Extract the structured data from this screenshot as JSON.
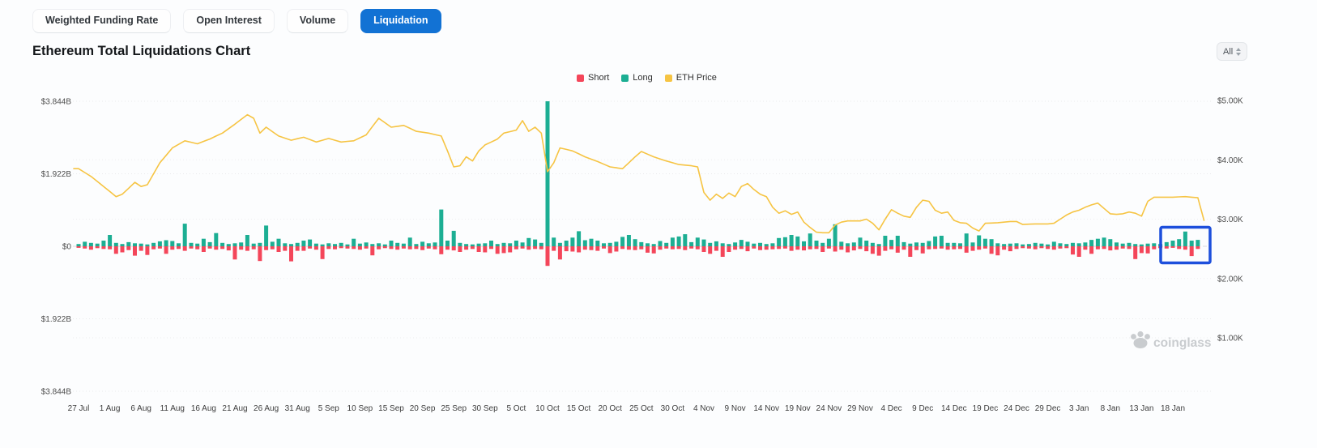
{
  "tabs": {
    "items": [
      {
        "label": "Weighted Funding Rate",
        "active": false
      },
      {
        "label": "Open Interest",
        "active": false
      },
      {
        "label": "Volume",
        "active": false
      },
      {
        "label": "Liquidation",
        "active": true
      }
    ],
    "active_color": "#1272d4"
  },
  "header": {
    "title": "Ethereum Total Liquidations Chart"
  },
  "range_select": {
    "value": "All"
  },
  "legend": [
    {
      "label": "Short",
      "color": "#f4465a"
    },
    {
      "label": "Long",
      "color": "#1cae93"
    },
    {
      "label": "ETH Price",
      "color": "#f6c443"
    }
  ],
  "watermark": {
    "brand": "coinglass",
    "color": "#c9cccf"
  },
  "chart_data": {
    "type": "bar+line",
    "title": "Ethereum Total Liquidations Chart",
    "bar_unit": "USD millions of liquidations per day",
    "grid": "dotted horizontal gridlines",
    "legend_position": "top-center",
    "num_days": 180,
    "x_start": "27 Jul",
    "x_end": "22 Jan",
    "days_per_tick": 5,
    "x_tick_labels": [
      "27 Jul",
      "1 Aug",
      "6 Aug",
      "11 Aug",
      "16 Aug",
      "21 Aug",
      "26 Aug",
      "31 Aug",
      "5 Sep",
      "10 Sep",
      "15 Sep",
      "20 Sep",
      "25 Sep",
      "30 Sep",
      "5 Oct",
      "10 Oct",
      "15 Oct",
      "20 Oct",
      "25 Oct",
      "30 Oct",
      "4 Nov",
      "9 Nov",
      "14 Nov",
      "19 Nov",
      "24 Nov",
      "29 Nov",
      "4 Dec",
      "9 Dec",
      "14 Dec",
      "19 Dec",
      "24 Dec",
      "29 Dec",
      "3 Jan",
      "8 Jan",
      "13 Jan",
      "18 Jan"
    ],
    "left_axis": {
      "labels": [
        "$3.844B",
        "$1.922B",
        "$0",
        "$1.922B",
        "$3.844B"
      ],
      "max_B": 3.844,
      "mirrored": true
    },
    "right_axis": {
      "labels": [
        "$5.00K",
        "$4.00K",
        "$3.00K",
        "$2.00K",
        "$1.00K"
      ],
      "max_K": 5,
      "min_K": 1
    },
    "series": [
      {
        "name": "Short",
        "type": "bar",
        "direction": "down",
        "color": "#f4465a",
        "values": [
          -40,
          -60,
          -90,
          -50,
          -70,
          -80,
          -200,
          -160,
          -100,
          -250,
          -120,
          -230,
          -80,
          -60,
          -200,
          -90,
          -70,
          -120,
          -60,
          -80,
          -150,
          -60,
          -90,
          -70,
          -110,
          -350,
          -90,
          -120,
          -80,
          -390,
          -100,
          -80,
          -150,
          -120,
          -400,
          -120,
          -120,
          -60,
          -90,
          -340,
          -70,
          -80,
          -50,
          -60,
          -70,
          -90,
          -60,
          -240,
          -80,
          -50,
          -70,
          -90,
          -60,
          -80,
          -70,
          -100,
          -60,
          -80,
          -210,
          -90,
          -110,
          -150,
          -90,
          -70,
          -150,
          -160,
          -70,
          -200,
          -180,
          -160,
          -80,
          -60,
          -90,
          -70,
          -80,
          -520,
          -120,
          -350,
          -130,
          -140,
          -160,
          -90,
          -100,
          -120,
          -60,
          -180,
          -140,
          -70,
          -90,
          -100,
          -80,
          -170,
          -190,
          -90,
          -60,
          -80,
          -70,
          -100,
          -60,
          -80,
          -150,
          -200,
          -120,
          -280,
          -150,
          -90,
          -70,
          -130,
          -60,
          -100,
          -90,
          -80,
          -70,
          -60,
          -120,
          -90,
          -110,
          -80,
          -70,
          -150,
          -60,
          -140,
          -90,
          -160,
          -110,
          -70,
          -130,
          -200,
          -250,
          -120,
          -80,
          -170,
          -90,
          -280,
          -100,
          -190,
          -80,
          -70,
          -60,
          -90,
          -80,
          -70,
          -170,
          -120,
          -90,
          -60,
          -200,
          -240,
          -90,
          -130,
          -70,
          -50,
          -60,
          -80,
          -50,
          -70,
          -90,
          -60,
          -50,
          -220,
          -280,
          -90,
          -200,
          -80,
          -70,
          -110,
          -90,
          -60,
          -70,
          -340,
          -180,
          -190,
          -80,
          -50,
          -60,
          -40,
          -70,
          -90,
          -260,
          -70
        ]
      },
      {
        "name": "Long",
        "type": "bar",
        "direction": "up",
        "color": "#1cae93",
        "values": [
          60,
          120,
          90,
          70,
          150,
          300,
          90,
          60,
          110,
          80,
          70,
          50,
          90,
          130,
          160,
          140,
          80,
          600,
          90,
          70,
          200,
          110,
          350,
          90,
          60,
          80,
          100,
          300,
          70,
          90,
          550,
          120,
          200,
          80,
          60,
          90,
          150,
          180,
          70,
          50,
          80,
          60,
          90,
          50,
          200,
          70,
          100,
          60,
          80,
          50,
          150,
          90,
          70,
          230,
          60,
          120,
          80,
          100,
          975,
          150,
          410,
          90,
          60,
          50,
          70,
          80,
          150,
          60,
          90,
          80,
          150,
          100,
          220,
          180,
          90,
          3844,
          230,
          90,
          150,
          230,
          400,
          160,
          200,
          150,
          80,
          90,
          120,
          250,
          300,
          190,
          110,
          80,
          60,
          140,
          90,
          230,
          260,
          320,
          110,
          230,
          180,
          90,
          130,
          80,
          60,
          100,
          170,
          120,
          70,
          90,
          60,
          80,
          220,
          240,
          300,
          260,
          130,
          340,
          150,
          90,
          200,
          585,
          120,
          80,
          100,
          230,
          150,
          90,
          60,
          280,
          170,
          280,
          110,
          70,
          100,
          90,
          140,
          260,
          280,
          90,
          90,
          80,
          340,
          100,
          290,
          200,
          190,
          80,
          60,
          70,
          80,
          50,
          60,
          90,
          70,
          50,
          120,
          80,
          60,
          90,
          80,
          100,
          170,
          200,
          230,
          190,
          100,
          70,
          90,
          60,
          50,
          70,
          80,
          60,
          110,
          150,
          190,
          390,
          150,
          170
        ]
      },
      {
        "name": "ETH Price",
        "type": "line",
        "axis": "right",
        "color": "#f6c443",
        "unit": "USD thousands",
        "keyframes": [
          [
            0,
            3.85
          ],
          [
            2,
            3.72
          ],
          [
            4,
            3.55
          ],
          [
            6,
            3.38
          ],
          [
            7,
            3.42
          ],
          [
            9,
            3.62
          ],
          [
            10,
            3.55
          ],
          [
            11,
            3.58
          ],
          [
            13,
            3.95
          ],
          [
            15,
            4.2
          ],
          [
            17,
            4.32
          ],
          [
            19,
            4.27
          ],
          [
            21,
            4.35
          ],
          [
            23,
            4.45
          ],
          [
            25,
            4.6
          ],
          [
            27,
            4.76
          ],
          [
            28,
            4.7
          ],
          [
            29,
            4.45
          ],
          [
            30,
            4.55
          ],
          [
            32,
            4.4
          ],
          [
            34,
            4.33
          ],
          [
            36,
            4.38
          ],
          [
            38,
            4.3
          ],
          [
            40,
            4.36
          ],
          [
            42,
            4.3
          ],
          [
            44,
            4.32
          ],
          [
            46,
            4.42
          ],
          [
            48,
            4.7
          ],
          [
            50,
            4.55
          ],
          [
            52,
            4.58
          ],
          [
            54,
            4.48
          ],
          [
            56,
            4.45
          ],
          [
            58,
            4.4
          ],
          [
            59,
            4.15
          ],
          [
            60,
            3.88
          ],
          [
            61,
            3.9
          ],
          [
            62,
            4.05
          ],
          [
            63,
            3.98
          ],
          [
            64,
            4.15
          ],
          [
            65,
            4.25
          ],
          [
            67,
            4.35
          ],
          [
            68,
            4.45
          ],
          [
            70,
            4.5
          ],
          [
            71,
            4.66
          ],
          [
            72,
            4.48
          ],
          [
            73,
            4.55
          ],
          [
            74,
            4.45
          ],
          [
            75,
            3.8
          ],
          [
            76,
            3.95
          ],
          [
            77,
            4.2
          ],
          [
            79,
            4.15
          ],
          [
            81,
            4.05
          ],
          [
            83,
            3.97
          ],
          [
            85,
            3.88
          ],
          [
            87,
            3.85
          ],
          [
            89,
            4.05
          ],
          [
            90,
            4.14
          ],
          [
            92,
            4.05
          ],
          [
            94,
            3.98
          ],
          [
            96,
            3.92
          ],
          [
            98,
            3.9
          ],
          [
            99,
            3.88
          ],
          [
            100,
            3.45
          ],
          [
            101,
            3.32
          ],
          [
            102,
            3.42
          ],
          [
            103,
            3.35
          ],
          [
            104,
            3.44
          ],
          [
            105,
            3.38
          ],
          [
            106,
            3.55
          ],
          [
            107,
            3.6
          ],
          [
            108,
            3.5
          ],
          [
            109,
            3.42
          ],
          [
            110,
            3.38
          ],
          [
            111,
            3.2
          ],
          [
            112,
            3.1
          ],
          [
            113,
            3.14
          ],
          [
            114,
            3.08
          ],
          [
            115,
            3.12
          ],
          [
            116,
            2.95
          ],
          [
            117,
            2.86
          ],
          [
            118,
            2.78
          ],
          [
            119,
            2.77
          ],
          [
            120,
            2.77
          ],
          [
            121,
            2.9
          ],
          [
            122,
            2.95
          ],
          [
            123,
            2.97
          ],
          [
            125,
            2.97
          ],
          [
            126,
            3.0
          ],
          [
            127,
            2.93
          ],
          [
            128,
            2.82
          ],
          [
            129,
            3.0
          ],
          [
            130,
            3.16
          ],
          [
            131,
            3.1
          ],
          [
            132,
            3.05
          ],
          [
            133,
            3.03
          ],
          [
            134,
            3.2
          ],
          [
            135,
            3.32
          ],
          [
            136,
            3.3
          ],
          [
            137,
            3.15
          ],
          [
            138,
            3.1
          ],
          [
            139,
            3.12
          ],
          [
            140,
            2.98
          ],
          [
            141,
            2.94
          ],
          [
            142,
            2.93
          ],
          [
            143,
            2.85
          ],
          [
            144,
            2.8
          ],
          [
            145,
            2.93
          ],
          [
            147,
            2.94
          ],
          [
            149,
            2.96
          ],
          [
            150,
            2.96
          ],
          [
            151,
            2.91
          ],
          [
            153,
            2.92
          ],
          [
            155,
            2.92
          ],
          [
            156,
            2.93
          ],
          [
            157,
            3.0
          ],
          [
            158,
            3.07
          ],
          [
            159,
            3.12
          ],
          [
            160,
            3.15
          ],
          [
            161,
            3.2
          ],
          [
            162,
            3.24
          ],
          [
            163,
            3.27
          ],
          [
            164,
            3.18
          ],
          [
            165,
            3.09
          ],
          [
            166,
            3.08
          ],
          [
            167,
            3.09
          ],
          [
            168,
            3.12
          ],
          [
            169,
            3.1
          ],
          [
            170,
            3.05
          ],
          [
            171,
            3.3
          ],
          [
            172,
            3.37
          ],
          [
            175,
            3.37
          ],
          [
            177,
            3.38
          ],
          [
            179,
            3.36
          ]
        ],
        "final_drop_K": 2.98
      }
    ],
    "notable_events": {
      "largest_long_liquidation": {
        "date_label": "10 Oct",
        "value_B": 3.844
      },
      "highlight_box_days": "16 Jan - 22 Jan"
    },
    "highlight_box": {
      "color": "#1d4fdc",
      "note": "blue annotation rectangle over the final days' bars near $0 baseline"
    }
  }
}
